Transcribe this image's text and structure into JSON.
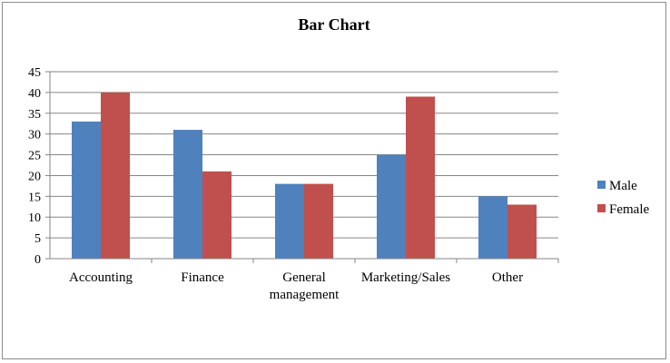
{
  "chart_data": {
    "type": "bar",
    "title": "Bar Chart",
    "xlabel": "",
    "ylabel": "",
    "ylim": [
      0,
      45
    ],
    "yticks": [
      0,
      5,
      10,
      15,
      20,
      25,
      30,
      35,
      40,
      45
    ],
    "categories": [
      "Accounting",
      "Finance",
      "General management",
      "Marketing/Sales",
      "Other"
    ],
    "category_lines": [
      [
        "Accounting"
      ],
      [
        "Finance"
      ],
      [
        "General",
        "management"
      ],
      [
        "Marketing/Sales"
      ],
      [
        "Other"
      ]
    ],
    "series": [
      {
        "name": "Male",
        "color": "#4f81bd",
        "values": [
          33,
          31,
          18,
          25,
          15
        ]
      },
      {
        "name": "Female",
        "color": "#c0504d",
        "values": [
          40,
          21,
          18,
          39,
          13
        ]
      }
    ],
    "grid": true,
    "legend_position": "right"
  }
}
